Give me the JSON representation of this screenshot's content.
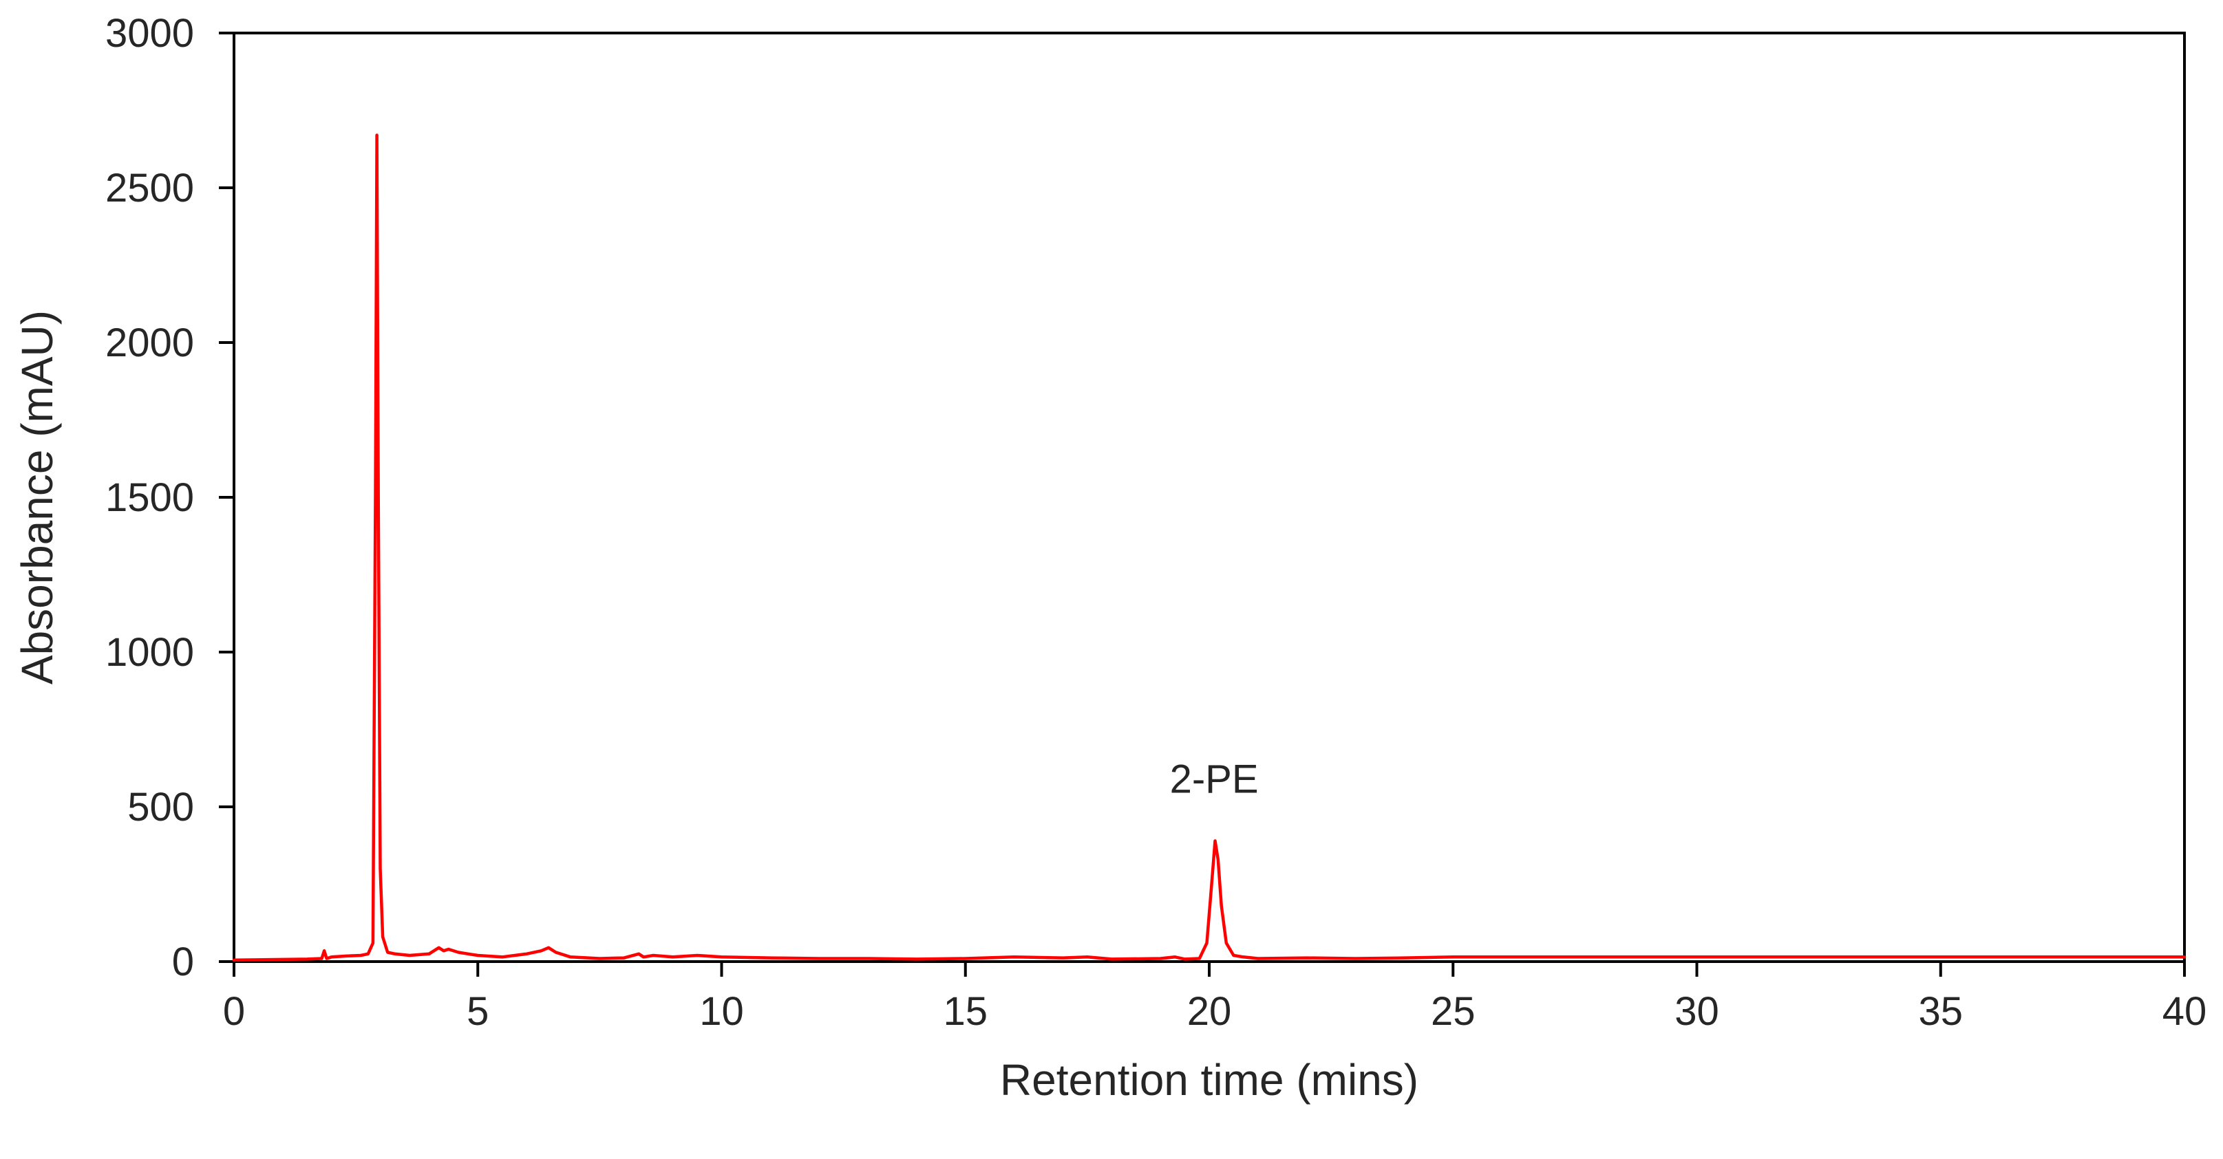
{
  "chart_data": {
    "type": "line",
    "title": "",
    "xlabel": "Retention time (mins)",
    "ylabel": "Absorbance (mAU)",
    "xlim": [
      0,
      40
    ],
    "ylim": [
      0,
      3000
    ],
    "xticks": [
      0,
      5,
      10,
      15,
      20,
      25,
      30,
      35,
      40
    ],
    "yticks": [
      0,
      500,
      1000,
      1500,
      2000,
      2500,
      3000
    ],
    "grid": false,
    "legend": "none",
    "series": [
      {
        "color": "#ff0000",
        "x": [
          0,
          1.5,
          1.8,
          1.85,
          1.9,
          2.0,
          2.3,
          2.6,
          2.75,
          2.85,
          2.9,
          2.93,
          2.96,
          3.0,
          3.05,
          3.15,
          3.3,
          3.6,
          4.0,
          4.2,
          4.3,
          4.4,
          4.6,
          4.8,
          5.0,
          5.5,
          6.0,
          6.3,
          6.45,
          6.6,
          6.9,
          7.5,
          8.0,
          8.3,
          8.4,
          8.6,
          9.0,
          9.5,
          10.0,
          11.0,
          12.0,
          13.0,
          14.0,
          15.0,
          16.0,
          17.0,
          17.5,
          18.0,
          19.0,
          19.3,
          19.5,
          19.8,
          19.95,
          20.05,
          20.12,
          20.18,
          20.25,
          20.35,
          20.5,
          20.7,
          21.0,
          22.0,
          23.0,
          24.0,
          25.0,
          30.0,
          35.0,
          40.0
        ],
        "y": [
          5,
          8,
          10,
          35,
          10,
          15,
          18,
          20,
          25,
          60,
          1500,
          2670,
          1500,
          300,
          80,
          30,
          25,
          20,
          25,
          45,
          35,
          40,
          30,
          25,
          20,
          15,
          25,
          35,
          45,
          30,
          15,
          10,
          12,
          25,
          15,
          20,
          15,
          20,
          15,
          12,
          10,
          10,
          8,
          10,
          15,
          12,
          15,
          8,
          10,
          15,
          8,
          10,
          60,
          250,
          390,
          330,
          180,
          60,
          20,
          15,
          10,
          12,
          10,
          12,
          15,
          15,
          15,
          15
        ]
      }
    ],
    "annotations": [
      {
        "text": "2-PE",
        "x": 20.1,
        "y": 390
      }
    ]
  }
}
